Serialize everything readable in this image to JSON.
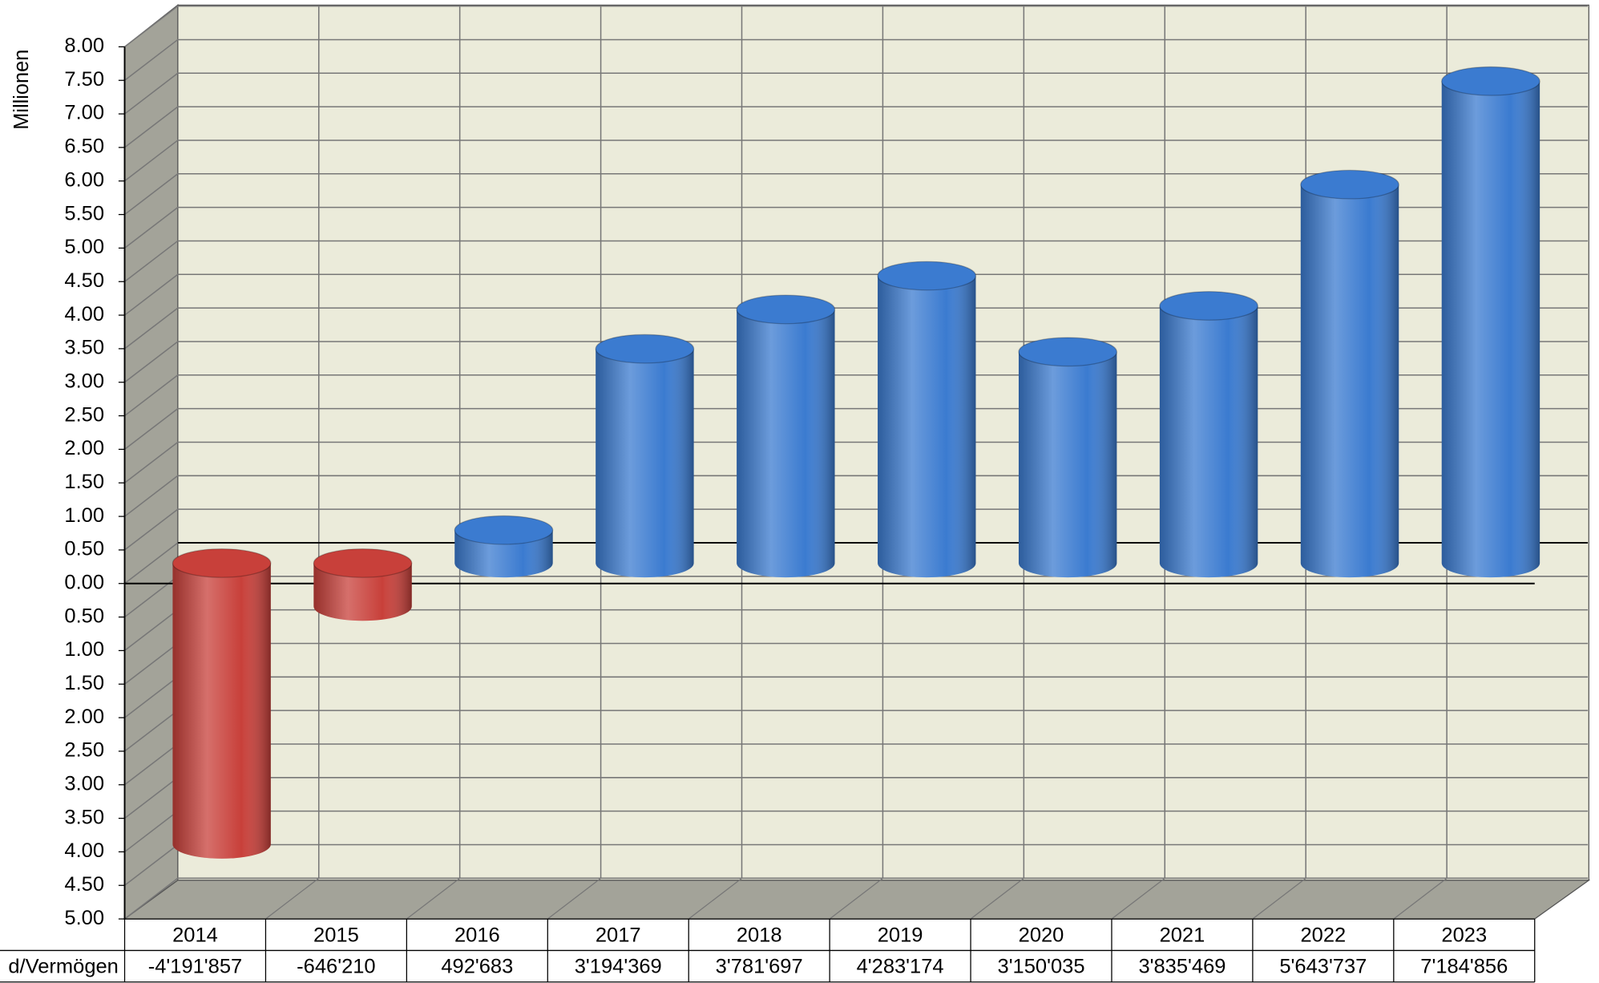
{
  "chart_data": {
    "type": "bar3d",
    "y_label": "Millionen",
    "categories": [
      "2014",
      "2015",
      "2016",
      "2017",
      "2018",
      "2019",
      "2020",
      "2021",
      "2022",
      "2023"
    ],
    "series": [
      {
        "name": "d/Vermögen",
        "color": "#3b7bd0",
        "negative_color": "#c8403a",
        "values": [
          -4.191857,
          -0.64621,
          0.492683,
          3.194369,
          3.781697,
          4.283174,
          3.150035,
          3.835469,
          5.643737,
          7.184856
        ],
        "value_labels": [
          "-4'191'857",
          "-646'210",
          "492'683",
          "3'194'369",
          "3'781'697",
          "4'283'174",
          "3'150'035",
          "3'835'469",
          "5'643'737",
          "7'184'856"
        ]
      }
    ],
    "ylim": [
      -5,
      8
    ],
    "yticks": [
      {
        "value": 8,
        "label": "8.00"
      },
      {
        "value": 7.5,
        "label": "7.50"
      },
      {
        "value": 7,
        "label": "7.00"
      },
      {
        "value": 6.5,
        "label": "6.50"
      },
      {
        "value": 6,
        "label": "6.00"
      },
      {
        "value": 5.5,
        "label": "5.50"
      },
      {
        "value": 5,
        "label": "5.00"
      },
      {
        "value": 4.5,
        "label": "4.50"
      },
      {
        "value": 4,
        "label": "4.00"
      },
      {
        "value": 3.5,
        "label": "3.50"
      },
      {
        "value": 3,
        "label": "3.00"
      },
      {
        "value": 2.5,
        "label": "2.50"
      },
      {
        "value": 2,
        "label": "2.00"
      },
      {
        "value": 1.5,
        "label": "1.50"
      },
      {
        "value": 1,
        "label": "1.00"
      },
      {
        "value": 0.5,
        "label": "0.50"
      },
      {
        "value": 0,
        "label": "0.00"
      },
      {
        "value": -0.5,
        "label": "0.50"
      },
      {
        "value": -1,
        "label": "1.00"
      },
      {
        "value": -1.5,
        "label": "1.50"
      },
      {
        "value": -2,
        "label": "2.00"
      },
      {
        "value": -2.5,
        "label": "2.50"
      },
      {
        "value": -3,
        "label": "3.00"
      },
      {
        "value": -3.5,
        "label": "3.50"
      },
      {
        "value": -4,
        "label": "4.00"
      },
      {
        "value": -4.5,
        "label": "4.50"
      },
      {
        "value": -5,
        "label": "5.00"
      }
    ],
    "negative_tick_color": "#e00000",
    "grid": true
  }
}
